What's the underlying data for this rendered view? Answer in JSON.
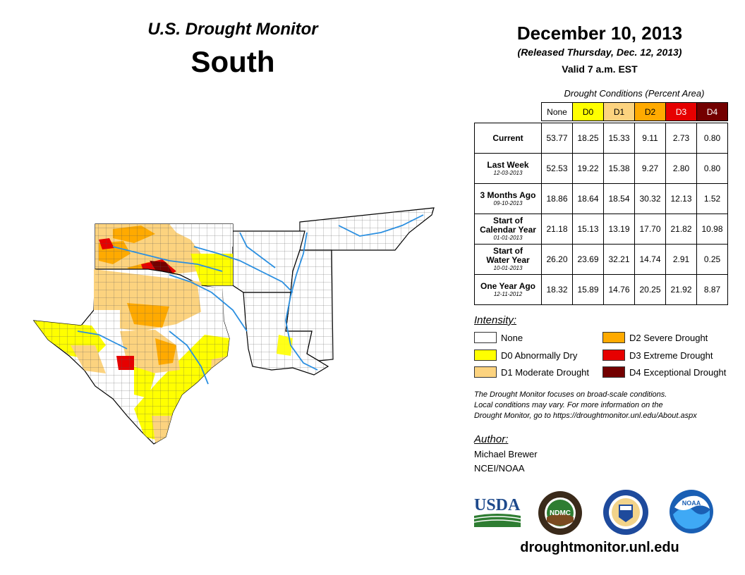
{
  "header": {
    "program": "U.S. Drought Monitor",
    "region": "South",
    "date": "December 10, 2013",
    "released": "(Released Thursday, Dec. 12, 2013)",
    "valid": "Valid 7 a.m. EST"
  },
  "table": {
    "caption": "Drought Conditions (Percent Area)",
    "columns": [
      "None",
      "D0",
      "D1",
      "D2",
      "D3",
      "D4"
    ],
    "rows": [
      {
        "label": "Current",
        "sub": "",
        "values": [
          "53.77",
          "18.25",
          "15.33",
          "9.11",
          "2.73",
          "0.80"
        ]
      },
      {
        "label": "Last Week",
        "sub": "12-03-2013",
        "values": [
          "52.53",
          "19.22",
          "15.38",
          "9.27",
          "2.80",
          "0.80"
        ]
      },
      {
        "label": "3 Months Ago",
        "sub": "09-10-2013",
        "values": [
          "18.86",
          "18.64",
          "18.54",
          "30.32",
          "12.13",
          "1.52"
        ]
      },
      {
        "label": "Start of Calendar Year",
        "label1": "Start of",
        "label2": "Calendar Year",
        "sub": "01-01-2013",
        "values": [
          "21.18",
          "15.13",
          "13.19",
          "17.70",
          "21.82",
          "10.98"
        ]
      },
      {
        "label": "Start of Water Year",
        "label1": "Start of",
        "label2": "Water Year",
        "sub": "10-01-2013",
        "values": [
          "26.20",
          "23.69",
          "32.21",
          "14.74",
          "2.91",
          "0.25"
        ]
      },
      {
        "label": "One Year Ago",
        "sub": "12-11-2012",
        "values": [
          "18.32",
          "15.89",
          "14.76",
          "20.25",
          "21.92",
          "8.87"
        ]
      }
    ]
  },
  "legend": {
    "title": "Intensity:",
    "items": [
      {
        "label": "None",
        "color": "#ffffff"
      },
      {
        "label": "D0 Abnormally Dry",
        "color": "#ffff00"
      },
      {
        "label": "D1 Moderate Drought",
        "color": "#fcd37f"
      },
      {
        "label": "D2 Severe Drought",
        "color": "#ffaa00"
      },
      {
        "label": "D3 Extreme Drought",
        "color": "#e60000"
      },
      {
        "label": "D4 Exceptional Drought",
        "color": "#730000"
      }
    ]
  },
  "note": {
    "line1": "The Drought Monitor focuses on broad-scale conditions.",
    "line2": "Local conditions may vary. For more information on the",
    "line3": "Drought Monitor, go to https://droughtmonitor.unl.edu/About.aspx"
  },
  "author": {
    "title": "Author:",
    "name": "Michael Brewer",
    "org": "NCEI/NOAA"
  },
  "logos": {
    "usda": "USDA",
    "ndmc": "NDMC",
    "noaa": "NOAA"
  },
  "footer": {
    "url": "droughtmonitor.unl.edu"
  }
}
